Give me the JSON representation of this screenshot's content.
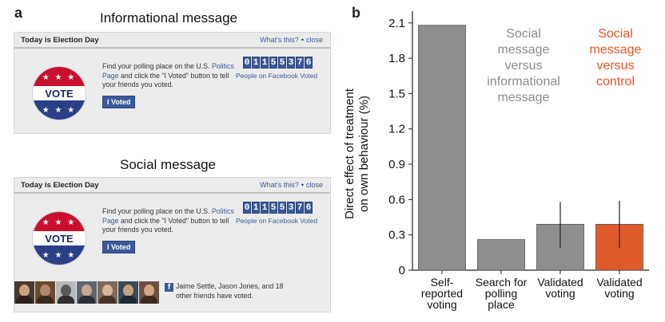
{
  "panel_a": {
    "letter": "a",
    "informational": {
      "title": "Informational message",
      "header_left": "Today is Election Day",
      "whats_this": "What's this?",
      "sep": "•",
      "close": "close",
      "badge_text": "VOTE",
      "stars": "★ ★ ★",
      "find_line1": "Find your polling place on the U.S.",
      "find_link": "Politics Page",
      "find_rest": " and click the \"I Voted\" button to tell your friends you voted.",
      "button": "I Voted",
      "counter_digits": [
        "0",
        "1",
        "1",
        "5",
        "5",
        "3",
        "7",
        "6"
      ],
      "counter_label": "People on Facebook Voted"
    },
    "social": {
      "title": "Social message",
      "header_left": "Today is Election Day",
      "whats_this": "What's this?",
      "sep": "•",
      "close": "close",
      "badge_text": "VOTE",
      "stars": "★ ★ ★",
      "find_line1": "Find your polling place on the U.S.",
      "find_link": "Politics Page",
      "find_rest": " and click the \"I Voted\" button to tell your friends you voted.",
      "button": "I Voted",
      "counter_digits": [
        "0",
        "1",
        "1",
        "5",
        "5",
        "3",
        "7",
        "6"
      ],
      "counter_label": "People on Facebook Voted",
      "friends_text": "Jaime Settle, Jason Jones, and 18 other friends have voted.",
      "fb_glyph": "f"
    }
  },
  "chart_data": {
    "type": "bar",
    "panel_letter": "b",
    "ylabel_line1": "Direct effect of treatment",
    "ylabel_line2": "on own behaviour (%)",
    "ylim": [
      0,
      2.2
    ],
    "yticks": [
      "0",
      "0.3",
      "0.6",
      "0.9",
      "1.2",
      "1.5",
      "1.8",
      "2.1"
    ],
    "ytick_values": [
      0,
      0.3,
      0.6,
      0.9,
      1.2,
      1.5,
      1.8,
      2.1
    ],
    "categories": [
      [
        "Self-",
        "reported",
        "voting"
      ],
      [
        "Search for",
        "polling",
        "place"
      ],
      [
        "Validated",
        "voting"
      ],
      [
        "Validated",
        "voting"
      ]
    ],
    "values": [
      2.08,
      0.26,
      0.39,
      0.39
    ],
    "error_low": [
      null,
      null,
      0.19,
      0.19
    ],
    "error_high": [
      null,
      null,
      0.58,
      0.59
    ],
    "bar_colors": [
      "#8e8e8c",
      "#8e8e8c",
      "#8e8e8c",
      "#e05a2b"
    ],
    "annotations": [
      {
        "lines": [
          "Social",
          "message",
          "versus",
          "informational",
          "message"
        ],
        "color": "#8c8c8c"
      },
      {
        "lines": [
          "Social",
          "message",
          "versus",
          "control"
        ],
        "color": "#e8542a"
      }
    ],
    "grid": false
  }
}
